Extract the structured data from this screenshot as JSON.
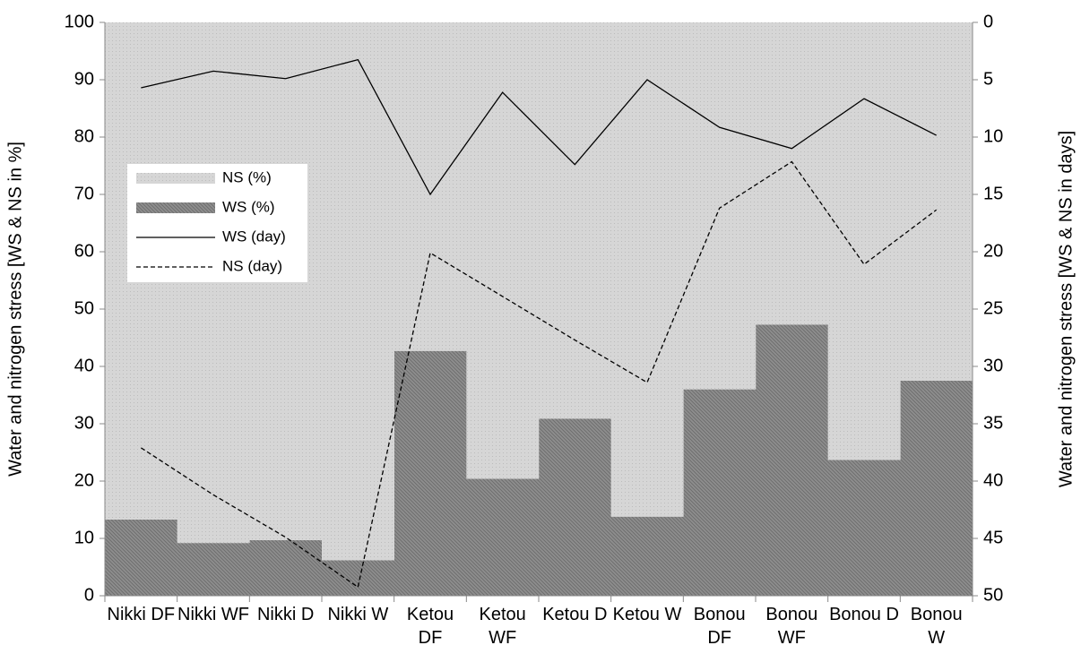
{
  "chart_data": {
    "type": "combo",
    "y_label": "Water and nitrogen stress [WS & NS in %]",
    "y2_label": "Water and nitrogen stress [WS & NS in days]",
    "categories": [
      "Nikki DF",
      "Nikki WF",
      "Nikki D",
      "Nikki W",
      "Ketou DF",
      "Ketou WF",
      "Ketou D",
      "Ketou W",
      "Bonou DF",
      "Bonou WF",
      "Bonou D",
      "Bonou W"
    ],
    "series": [
      {
        "name": "NS (%)",
        "type": "stacked-bar",
        "color": "#d6d6d6",
        "values": [
          86.7,
          90.8,
          90.3,
          93.8,
          57.3,
          79.6,
          69.1,
          86.2,
          64,
          52.7,
          76.3,
          62.5
        ]
      },
      {
        "name": "WS (%)",
        "type": "stacked-bar",
        "color": "#8e8e8e",
        "values": [
          13.3,
          9.2,
          9.7,
          6.2,
          42.7,
          20.4,
          30.9,
          13.8,
          36,
          47.3,
          23.7,
          37.5
        ]
      },
      {
        "name": "WS (day)",
        "type": "line",
        "axis": "y2",
        "color": "#000000",
        "dashed": false,
        "values": [
          5.7,
          4.25,
          4.9,
          3.25,
          15,
          6.1,
          12.4,
          5,
          9.15,
          11,
          6.65,
          9.85
        ]
      },
      {
        "name": "NS (day)",
        "type": "line",
        "axis": "y2",
        "color": "#000000",
        "dashed": true,
        "values": [
          37.1,
          41.2,
          44.9,
          49.25,
          20.1,
          23.9,
          27.7,
          31.4,
          16.2,
          12.15,
          21.1,
          16.35
        ]
      }
    ],
    "ylim": [
      0,
      100
    ],
    "yticks": [
      0,
      10,
      20,
      30,
      40,
      50,
      60,
      70,
      80,
      90,
      100
    ],
    "y2lim": [
      50,
      0
    ],
    "y2ticks": [
      0,
      5,
      10,
      15,
      20,
      25,
      30,
      35,
      40,
      45,
      50
    ],
    "legend": "left"
  }
}
